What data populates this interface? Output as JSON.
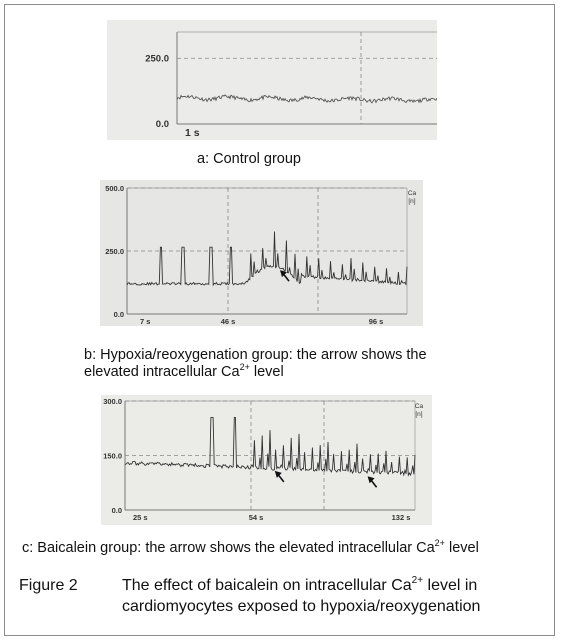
{
  "chart_data": [
    {
      "type": "line",
      "panel": "a",
      "ylim": [
        0,
        350
      ],
      "y_ticks": [
        {
          "value": 0,
          "label": "0.0"
        },
        {
          "value": 250,
          "label": "250.0"
        }
      ],
      "x_tick_labels": [
        {
          "label": "1 s"
        }
      ],
      "baseline": 100,
      "peaks": [],
      "arrows": [],
      "caption": "a: Control group"
    },
    {
      "type": "line",
      "panel": "b",
      "ylim": [
        0,
        500
      ],
      "y_ticks": [
        {
          "value": 0,
          "label": "0.0"
        },
        {
          "value": 250,
          "label": "250.0"
        },
        {
          "value": 500,
          "label": "500.0"
        }
      ],
      "x_tick_labels": [
        {
          "label": "7 s"
        },
        {
          "label": "46 s"
        },
        {
          "label": "96 s"
        }
      ],
      "y_unit_label": [
        "Ca",
        "[n]"
      ],
      "baseline": 120,
      "arrows": [
        {
          "x_fraction": 0.55,
          "value": 170
        }
      ],
      "caption_lines": [
        "b: Hypoxia/reoxygenation group: the arrow shows the",
        "elevated intracellular Ca",
        "2+",
        " level"
      ]
    },
    {
      "type": "line",
      "panel": "c",
      "ylim": [
        0,
        300
      ],
      "y_ticks": [
        {
          "value": 0,
          "label": "0.0"
        },
        {
          "value": 150,
          "label": "150.0"
        },
        {
          "value": 300,
          "label": "300.0"
        }
      ],
      "x_tick_labels": [
        {
          "label": "25 s"
        },
        {
          "label": "54 s"
        },
        {
          "label": "132 s"
        }
      ],
      "y_unit_label": [
        "Ca",
        "[n]"
      ],
      "baseline": 130,
      "arrows": [
        {
          "x_fraction": 0.52,
          "value": 105
        },
        {
          "x_fraction": 0.84,
          "value": 90
        }
      ],
      "caption_parts": [
        "c: Baicalein group: the arrow shows the elevated intracellular Ca",
        "2+",
        " level"
      ]
    }
  ],
  "figure": {
    "number": "Figure 2",
    "title_line1": "The effect of baicalein on intracellular Ca",
    "sup": "2+",
    "title_line1_end": " level in",
    "title_line2": "cardiomyocytes exposed to hypoxia/reoxygenation"
  }
}
